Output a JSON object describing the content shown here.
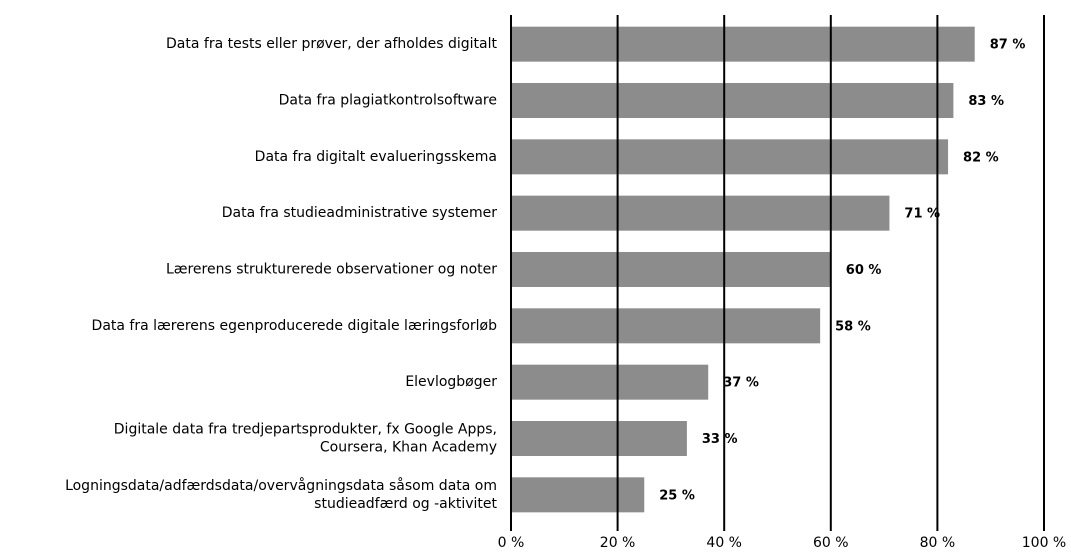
{
  "chart_data": {
    "type": "barh",
    "categories": [
      "Data fra tests eller prøver, der afholdes digitalt",
      "Data fra plagiatkontrolsoftware",
      "Data fra digitalt evalueringsskema",
      "Data fra studieadministrative systemer",
      "Lærerens strukturerede observationer og noter",
      "Data fra lærerens egenproducerede digitale læringsforløb",
      "Elevlogbøger",
      "Digitale data fra tredjepartsprodukter, fx Google Apps,\nCoursera, Khan Academy",
      "Logningsdata/adfærdsdata/overvågningsdata såsom data om\nstudieadfærd og -aktivitet"
    ],
    "values": [
      87,
      83,
      82,
      71,
      60,
      58,
      37,
      33,
      25
    ],
    "value_labels": [
      "87 %",
      "83 %",
      "82 %",
      "71 %",
      "60 %",
      "58 %",
      "37 %",
      "33 %",
      "25 %"
    ],
    "color": "#8c8c8c",
    "xlim": [
      0,
      100
    ],
    "xticks": [
      {
        "value": 0,
        "label": "0 %"
      },
      {
        "value": 20,
        "label": "20 %"
      },
      {
        "value": 40,
        "label": "40 %"
      },
      {
        "value": 60,
        "label": "60 %"
      },
      {
        "value": 80,
        "label": "80 %"
      },
      {
        "value": 100,
        "label": "100 %"
      }
    ],
    "grid": true
  }
}
